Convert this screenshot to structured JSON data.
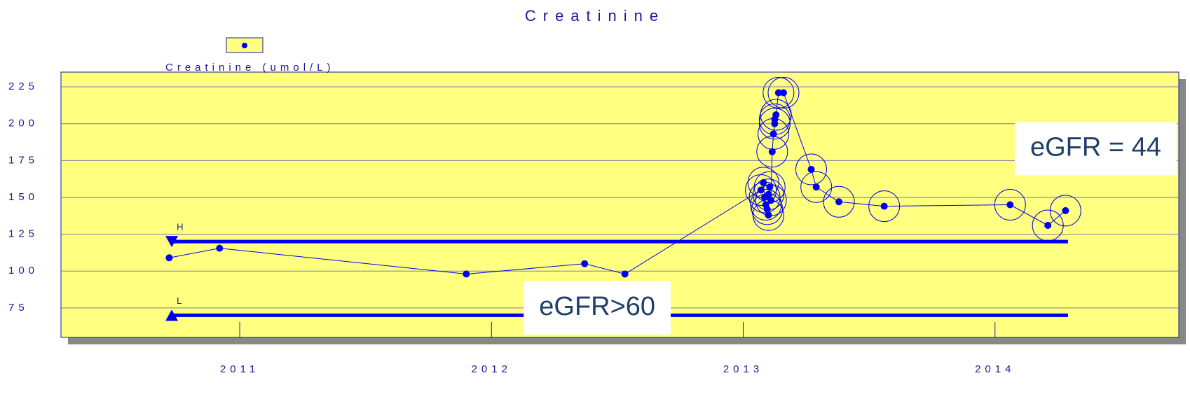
{
  "chart_data": {
    "type": "line",
    "title": "Creatinine",
    "series": [
      {
        "name": "Creatinine (umol/L)",
        "color": "#0000ee",
        "x": [
          2010.72,
          2010.92,
          2011.9,
          2012.37,
          2012.53,
          2013.07,
          2013.08,
          2013.085,
          2013.09,
          2013.095,
          2013.1,
          2013.1,
          2013.105,
          2013.11,
          2013.115,
          2013.12,
          2013.125,
          2013.125,
          2013.13,
          2013.14,
          2013.16,
          2013.27,
          2013.29,
          2013.38,
          2013.56,
          2014.06,
          2014.21,
          2014.28
        ],
        "values": [
          109,
          115.5,
          98,
          105,
          98,
          155,
          160,
          150,
          145,
          142,
          138,
          152,
          157,
          148,
          181,
          193,
          200,
          203,
          206,
          221,
          221,
          169,
          157,
          147,
          144,
          145,
          131,
          141
        ],
        "circled": [
          false,
          false,
          false,
          false,
          false,
          true,
          true,
          true,
          true,
          true,
          true,
          true,
          true,
          true,
          true,
          true,
          true,
          true,
          true,
          true,
          true,
          true,
          true,
          true,
          true,
          true,
          true,
          true
        ]
      }
    ],
    "reference_lines": [
      {
        "label": "H",
        "value": 120,
        "x": [
          2010.73,
          2014.29
        ],
        "marker": "down"
      },
      {
        "label": "L",
        "value": 70,
        "x": [
          2010.73,
          2014.29
        ],
        "marker": "up"
      }
    ],
    "annotations": [
      {
        "text": "eGFR = 44",
        "x": 2014.4,
        "y": 183
      },
      {
        "text": "eGFR>60",
        "x": 2012.42,
        "y": 75
      }
    ],
    "xlim": [
      2010.29,
      2014.73
    ],
    "xticks": [
      2011,
      2012,
      2013,
      2014
    ],
    "ylim": [
      55,
      235
    ],
    "yticks": [
      75,
      100,
      125,
      150,
      175,
      200,
      225
    ],
    "grid": true,
    "background": "#ffff80"
  }
}
